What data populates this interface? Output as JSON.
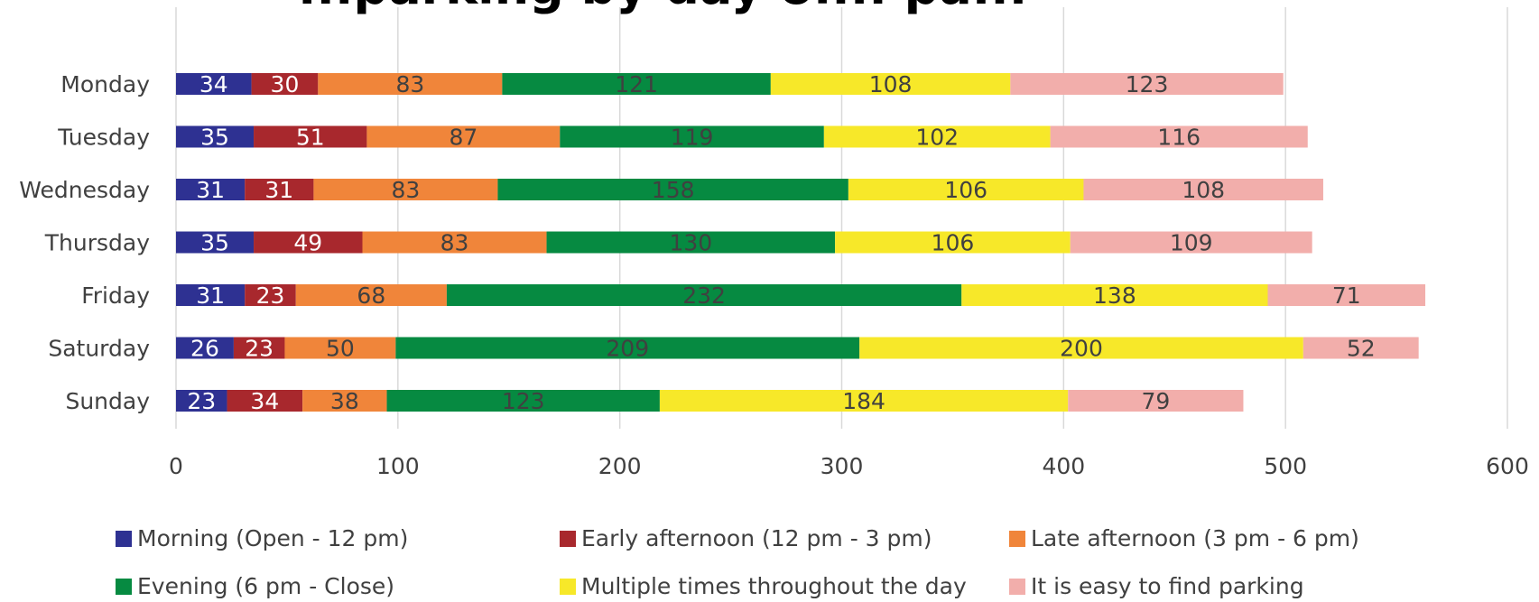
{
  "chart_data": {
    "type": "bar",
    "orientation": "horizontal",
    "stacked": true,
    "title": "...parking by day of... pa...",
    "categories": [
      "Monday",
      "Tuesday",
      "Wednesday",
      "Thursday",
      "Friday",
      "Saturday",
      "Sunday"
    ],
    "series": [
      {
        "name": "Morning (Open - 12 pm)",
        "color": "#2e3192",
        "label_color": "#ffffff",
        "values": [
          34,
          35,
          31,
          35,
          31,
          26,
          23
        ]
      },
      {
        "name": "Early afternoon (12 pm - 3 pm)",
        "color": "#a8282d",
        "label_color": "#ffffff",
        "values": [
          30,
          51,
          31,
          49,
          23,
          23,
          34
        ]
      },
      {
        "name": "Late afternoon (3 pm - 6 pm)",
        "color": "#f0853a",
        "label_color": "#404040",
        "values": [
          83,
          87,
          83,
          83,
          68,
          50,
          38
        ]
      },
      {
        "name": "Evening (6 pm - Close)",
        "color": "#068a41",
        "label_color": "#404040",
        "values": [
          121,
          119,
          158,
          130,
          232,
          209,
          123
        ]
      },
      {
        "name": "Multiple times throughout the day",
        "color": "#f7e829",
        "label_color": "#404040",
        "values": [
          108,
          102,
          106,
          106,
          138,
          200,
          184
        ]
      },
      {
        "name": "It is easy to find parking",
        "color": "#f2aeab",
        "label_color": "#404040",
        "values": [
          123,
          116,
          108,
          109,
          71,
          52,
          79
        ]
      }
    ],
    "x_ticks": [
      0,
      100,
      200,
      300,
      400,
      500,
      600
    ],
    "xlim": [
      0,
      600
    ],
    "grid": true,
    "legend_position": "bottom"
  }
}
